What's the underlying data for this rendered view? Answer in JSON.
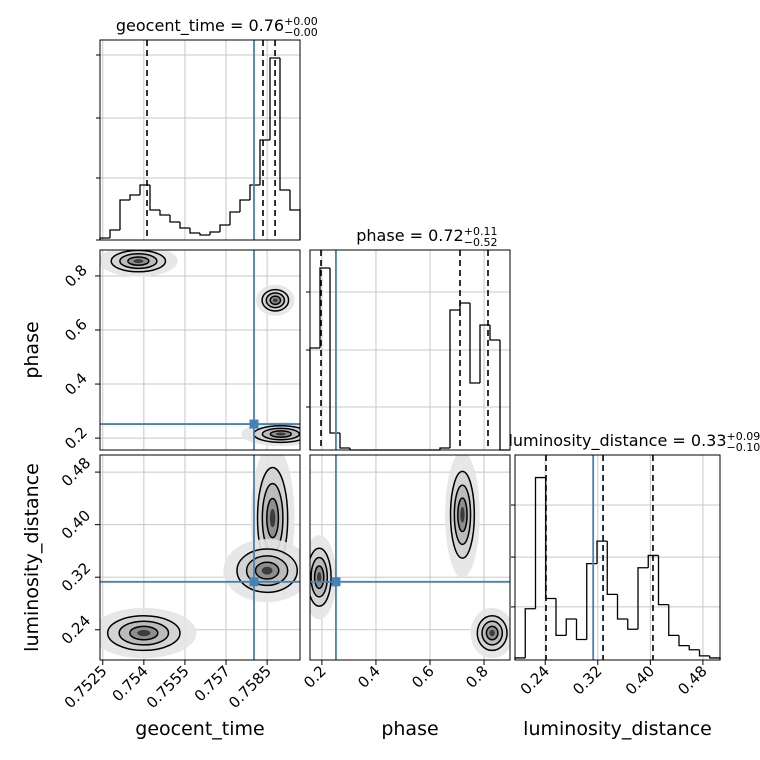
{
  "chart_data": {
    "type": "corner",
    "grid": true,
    "truth_color": "#4682b4",
    "line_color": "#000000",
    "parameters": [
      {
        "label": "geocent_time",
        "lim": [
          0.7524,
          0.7597
        ],
        "ticks": [
          0.7525,
          0.754,
          0.7555,
          0.757,
          0.7585
        ],
        "truth": 0.75802,
        "title": {
          "text": "geocent_time = 0.76",
          "upper": "+0.00",
          "lower": "−0.00"
        },
        "quantiles": [
          0.754116,
          0.75835,
          0.75879
        ],
        "hist": {
          "bins": [
            0.7524,
            0.752765,
            0.75313,
            0.753495,
            0.75386,
            0.754225,
            0.75459,
            0.754955,
            0.75532,
            0.755685,
            0.75605,
            0.756415,
            0.75678,
            0.757145,
            0.75751,
            0.757875,
            0.75824,
            0.758605,
            0.75897,
            0.759335,
            0.7597
          ],
          "values": [
            0.01,
            0.05,
            0.2,
            0.225,
            0.275,
            0.15,
            0.125,
            0.09,
            0.06,
            0.035,
            0.025,
            0.04,
            0.075,
            0.14,
            0.2,
            0.275,
            0.5,
            0.91,
            0.25,
            0.15
          ],
          "ylim": [
            0,
            1
          ],
          "yticks": [
            0,
            0.31,
            0.61,
            0.925
          ]
        }
      },
      {
        "label": "phase",
        "lim": [
          0.156,
          0.896
        ],
        "ticks": [
          0.2,
          0.4,
          0.6,
          0.8
        ],
        "truth": 0.252,
        "title": {
          "text": "phase = 0.72",
          "upper": "+0.11",
          "lower": "−0.52"
        },
        "quantiles": [
          0.1967,
          0.711,
          0.8146
        ],
        "hist": {
          "bins": [
            0.156,
            0.193,
            0.23,
            0.267,
            0.304,
            0.341,
            0.378,
            0.415,
            0.452,
            0.489,
            0.526,
            0.563,
            0.6,
            0.637,
            0.674,
            0.711,
            0.748,
            0.785,
            0.822,
            0.859,
            0.896
          ],
          "values": [
            0.51,
            0.91,
            0.085,
            0.01,
            0,
            0,
            0,
            0,
            0,
            0,
            0,
            0,
            0,
            0.01,
            0.7,
            0.735,
            0.335,
            0.625,
            0.55,
            0
          ],
          "ylim": [
            0,
            1
          ],
          "yticks": [
            0.215,
            0.5,
            0.79
          ]
        }
      },
      {
        "label": "luminosity_distance",
        "lim": [
          0.194,
          0.506
        ],
        "ticks": [
          0.24,
          0.32,
          {
            "value": 0.4,
            "label": "0.40"
          },
          0.48
        ],
        "truth": 0.313,
        "title": {
          "text": "luminosity_distance = 0.33",
          "upper": "+0.09",
          "lower": "−0.10"
        },
        "quantiles": [
          0.2412,
          0.328,
          0.404
        ],
        "hist": {
          "bins": [
            0.194,
            0.2096,
            0.2252,
            0.2408,
            0.2564,
            0.272,
            0.2876,
            0.3032,
            0.3188,
            0.3344,
            0.35,
            0.3656,
            0.3812,
            0.3968,
            0.4124,
            0.428,
            0.4436,
            0.4592,
            0.4748,
            0.4904,
            0.506
          ],
          "values": [
            0.01,
            0.25,
            0.89,
            0.3,
            0.12,
            0.2,
            0.1,
            0.47,
            0.58,
            0.32,
            0.2,
            0.15,
            0.45,
            0.51,
            0.27,
            0.12,
            0.07,
            0.05,
            0.02,
            0.01
          ],
          "ylim": [
            0,
            1
          ],
          "yticks": [
            0.259,
            0.502,
            0.756
          ]
        }
      }
    ],
    "pairs": [
      {
        "clusters": [
          {
            "x": 0.7538,
            "y": 0.855,
            "sx": 0.00045,
            "sy": 0.018
          },
          {
            "x": 0.7588,
            "y": 0.71,
            "sx": 0.00022,
            "sy": 0.018
          },
          {
            "x": 0.759,
            "y": 0.215,
            "sx": 0.00045,
            "sy": 0.014
          }
        ]
      },
      {
        "clusters": [
          {
            "x": 0.754,
            "y": 0.235,
            "sx": 0.0006,
            "sy": 0.012
          },
          {
            "x": 0.7587,
            "y": 0.41,
            "sx": 0.00025,
            "sy": 0.035
          },
          {
            "x": 0.7585,
            "y": 0.33,
            "sx": 0.0005,
            "sy": 0.015
          }
        ]
      },
      {
        "clusters": [
          {
            "x": 0.72,
            "y": 0.415,
            "sx": 0.02,
            "sy": 0.03
          },
          {
            "x": 0.83,
            "y": 0.235,
            "sx": 0.025,
            "sy": 0.012
          },
          {
            "x": 0.19,
            "y": 0.32,
            "sx": 0.02,
            "sy": 0.02
          }
        ]
      }
    ]
  }
}
